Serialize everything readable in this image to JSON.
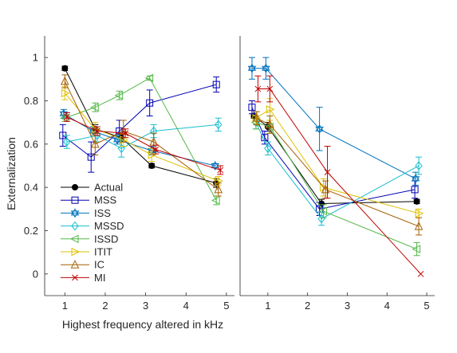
{
  "chart_data": [
    {
      "type": "line",
      "panel": "left",
      "xlabel": "Highest frequency altered in kHz",
      "ylabel": "Externalization",
      "xlim": [
        0.5,
        5.2
      ],
      "ylim": [
        -0.1,
        1.1
      ],
      "xticks": [
        1,
        2,
        3,
        4,
        5
      ],
      "yticks": [
        0,
        0.2,
        0.4,
        0.6,
        0.8,
        1
      ],
      "ytick_labels": [
        "0",
        "0.2",
        "0.4",
        "0.6",
        "0.8",
        "1"
      ],
      "xtick_labels": [
        "1",
        "2",
        "3",
        "4",
        "5"
      ],
      "grid": false,
      "legend_position": "lower-left",
      "series": [
        {
          "name": "Actual",
          "color": "#000000",
          "marker": "filled-circle",
          "x": [
            1.0,
            1.75,
            2.4,
            3.15,
            4.75
          ],
          "y": [
            0.95,
            0.67,
            0.63,
            0.5,
            0.42
          ],
          "err": [
            0.01,
            0.02,
            0.02,
            0.01,
            0.02
          ]
        },
        {
          "name": "MSS",
          "color": "#0000b3",
          "marker": "square",
          "x": [
            0.95,
            1.65,
            2.35,
            3.1,
            4.75
          ],
          "y": [
            0.64,
            0.54,
            0.66,
            0.79,
            0.875
          ],
          "err": [
            0.05,
            0.07,
            0.05,
            0.06,
            0.035
          ]
        },
        {
          "name": "ISS",
          "color": "#0072bd",
          "marker": "hexagram",
          "x": [
            0.97,
            1.7,
            2.3,
            3.15,
            4.72
          ],
          "y": [
            0.74,
            0.66,
            0.62,
            0.57,
            0.5
          ],
          "err": [
            0.02,
            0.02,
            0.02,
            0.02,
            0.01
          ]
        },
        {
          "name": "MSSD",
          "color": "#17becf",
          "marker": "diamond",
          "x": [
            1.05,
            1.8,
            2.4,
            3.2,
            4.8
          ],
          "y": [
            0.61,
            0.64,
            0.58,
            0.66,
            0.69
          ],
          "err": [
            0.03,
            0.03,
            0.04,
            0.03,
            0.03
          ]
        },
        {
          "name": "ISSD",
          "color": "#54b948",
          "marker": "triangle-left",
          "x": [
            1.0,
            1.75,
            2.35,
            3.1,
            4.75
          ],
          "y": [
            0.72,
            0.77,
            0.825,
            0.905,
            0.34
          ],
          "err": [
            0.015,
            0.02,
            0.02,
            0.01,
            0.02
          ]
        },
        {
          "name": "ITIT",
          "color": "#e0c000",
          "marker": "triangle-right",
          "x": [
            1.0,
            1.75,
            2.45,
            3.15,
            4.8
          ],
          "y": [
            0.835,
            0.67,
            0.62,
            0.55,
            0.43
          ],
          "err": [
            0.03,
            0.03,
            0.03,
            0.03,
            0.02
          ]
        },
        {
          "name": "IC",
          "color": "#a65f00",
          "marker": "triangle-up",
          "x": [
            1.0,
            1.75,
            2.45,
            3.2,
            4.8
          ],
          "y": [
            0.89,
            0.6,
            0.66,
            0.61,
            0.39
          ],
          "err": [
            0.03,
            0.05,
            0.05,
            0.04,
            0.03
          ]
        },
        {
          "name": "MI",
          "color": "#c00000",
          "marker": "x",
          "x": [
            1.05,
            1.8,
            2.5,
            3.25,
            4.85
          ],
          "y": [
            0.725,
            0.66,
            0.65,
            0.575,
            0.48
          ],
          "err": [
            0.02,
            0.02,
            0.02,
            0.02,
            0.02
          ]
        }
      ]
    },
    {
      "type": "line",
      "panel": "right",
      "xlim": [
        0.3,
        5.2
      ],
      "ylim": [
        -0.1,
        1.1
      ],
      "xticks": [
        1,
        2,
        3,
        4,
        5
      ],
      "xtick_labels": [
        "1",
        "2",
        "3",
        "4",
        "5"
      ],
      "grid": false,
      "series": [
        {
          "name": "Actual",
          "color": "#000000",
          "marker": "filled-circle",
          "x": [
            0.65,
            1.0,
            2.35,
            4.75
          ],
          "y": [
            0.73,
            0.68,
            0.325,
            0.335
          ],
          "err": [
            0.01,
            0.02,
            0.02,
            0.01
          ]
        },
        {
          "name": "MSS",
          "color": "#0000b3",
          "marker": "square",
          "x": [
            0.6,
            0.92,
            2.3,
            4.7
          ],
          "y": [
            0.77,
            0.63,
            0.3,
            0.39
          ],
          "err": [
            0.03,
            0.03,
            0.03,
            0.04
          ]
        },
        {
          "name": "ISS",
          "color": "#0072bd",
          "marker": "hexagram",
          "x": [
            0.6,
            0.95,
            2.3,
            4.72
          ],
          "y": [
            0.95,
            0.95,
            0.67,
            0.44
          ],
          "err": [
            0.05,
            0.05,
            0.1,
            0.03
          ]
        },
        {
          "name": "MSSD",
          "color": "#17becf",
          "marker": "diamond",
          "x": [
            0.7,
            1.0,
            2.35,
            4.8
          ],
          "y": [
            0.7,
            0.58,
            0.255,
            0.5
          ],
          "err": [
            0.03,
            0.03,
            0.03,
            0.04
          ]
        },
        {
          "name": "ISSD",
          "color": "#54b948",
          "marker": "triangle-left",
          "x": [
            0.7,
            1.05,
            2.4,
            4.75
          ],
          "y": [
            0.7,
            0.68,
            0.29,
            0.115
          ],
          "err": [
            0.03,
            0.03,
            0.03,
            0.03
          ]
        },
        {
          "name": "ITIT",
          "color": "#e0c000",
          "marker": "triangle-right",
          "x": [
            0.7,
            1.05,
            2.4,
            4.8
          ],
          "y": [
            0.72,
            0.76,
            0.4,
            0.28
          ],
          "err": [
            0.03,
            0.05,
            0.04,
            0.02
          ]
        },
        {
          "name": "IC",
          "color": "#a65f00",
          "marker": "triangle-up",
          "x": [
            0.72,
            1.05,
            2.45,
            4.8
          ],
          "y": [
            0.72,
            0.69,
            0.39,
            0.22
          ],
          "err": [
            0.03,
            0.04,
            0.04,
            0.04
          ]
        },
        {
          "name": "MI",
          "color": "#c00000",
          "marker": "x",
          "x": [
            0.75,
            1.05,
            2.5,
            4.85
          ],
          "y": [
            0.855,
            0.855,
            0.47,
            0.0
          ],
          "err": [
            0.06,
            0.06,
            0.12,
            0.0
          ]
        }
      ]
    }
  ]
}
